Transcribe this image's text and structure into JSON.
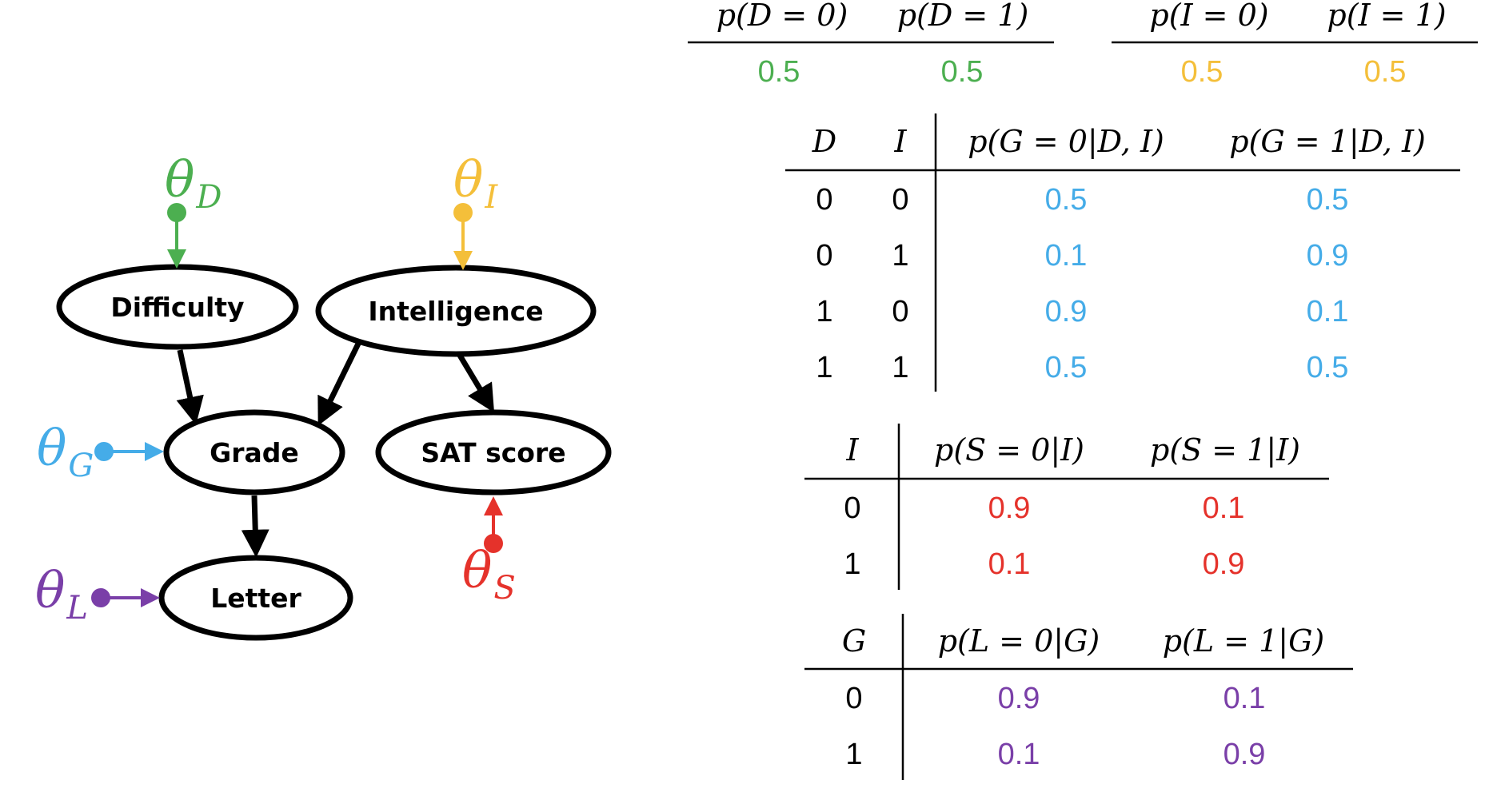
{
  "colors": {
    "D": "#4caf50",
    "I": "#f4bf3a",
    "G": "#45ace8",
    "S": "#e5322b",
    "L": "#7a3fa8",
    "edge": "#000000"
  },
  "nodes": [
    {
      "id": "difficulty",
      "label": "Difficulty"
    },
    {
      "id": "intelligence",
      "label": "Intelligence"
    },
    {
      "id": "grade",
      "label": "Grade"
    },
    {
      "id": "sat",
      "label": "SAT score"
    },
    {
      "id": "letter",
      "label": "Letter"
    }
  ],
  "params": [
    {
      "id": "theta-d",
      "symbol": "θ",
      "sub": "D"
    },
    {
      "id": "theta-i",
      "symbol": "θ",
      "sub": "I"
    },
    {
      "id": "theta-g",
      "symbol": "θ",
      "sub": "G"
    },
    {
      "id": "theta-s",
      "symbol": "θ",
      "sub": "S"
    },
    {
      "id": "theta-l",
      "symbol": "θ",
      "sub": "L"
    }
  ],
  "edges": [
    {
      "from": "difficulty",
      "to": "grade"
    },
    {
      "from": "intelligence",
      "to": "grade"
    },
    {
      "from": "intelligence",
      "to": "sat"
    },
    {
      "from": "grade",
      "to": "letter"
    }
  ],
  "tables": {
    "d_prior": {
      "headers": [
        "p(D = 0)",
        "p(D = 1)"
      ],
      "values": [
        "0.5",
        "0.5"
      ]
    },
    "i_prior": {
      "headers": [
        "p(I = 0)",
        "p(I = 1)"
      ],
      "values": [
        "0.5",
        "0.5"
      ]
    },
    "g_cpt": {
      "headers": [
        "D",
        "I",
        "p(G = 0|D, I)",
        "p(G = 1|D, I)"
      ],
      "rows": [
        [
          "0",
          "0",
          "0.5",
          "0.5"
        ],
        [
          "0",
          "1",
          "0.1",
          "0.9"
        ],
        [
          "1",
          "0",
          "0.9",
          "0.1"
        ],
        [
          "1",
          "1",
          "0.5",
          "0.5"
        ]
      ]
    },
    "s_cpt": {
      "headers": [
        "I",
        "p(S = 0|I)",
        "p(S = 1|I)"
      ],
      "rows": [
        [
          "0",
          "0.9",
          "0.1"
        ],
        [
          "1",
          "0.1",
          "0.9"
        ]
      ]
    },
    "l_cpt": {
      "headers": [
        "G",
        "p(L = 0|G)",
        "p(L = 1|G)"
      ],
      "rows": [
        [
          "0",
          "0.9",
          "0.1"
        ],
        [
          "1",
          "0.1",
          "0.9"
        ]
      ]
    }
  }
}
